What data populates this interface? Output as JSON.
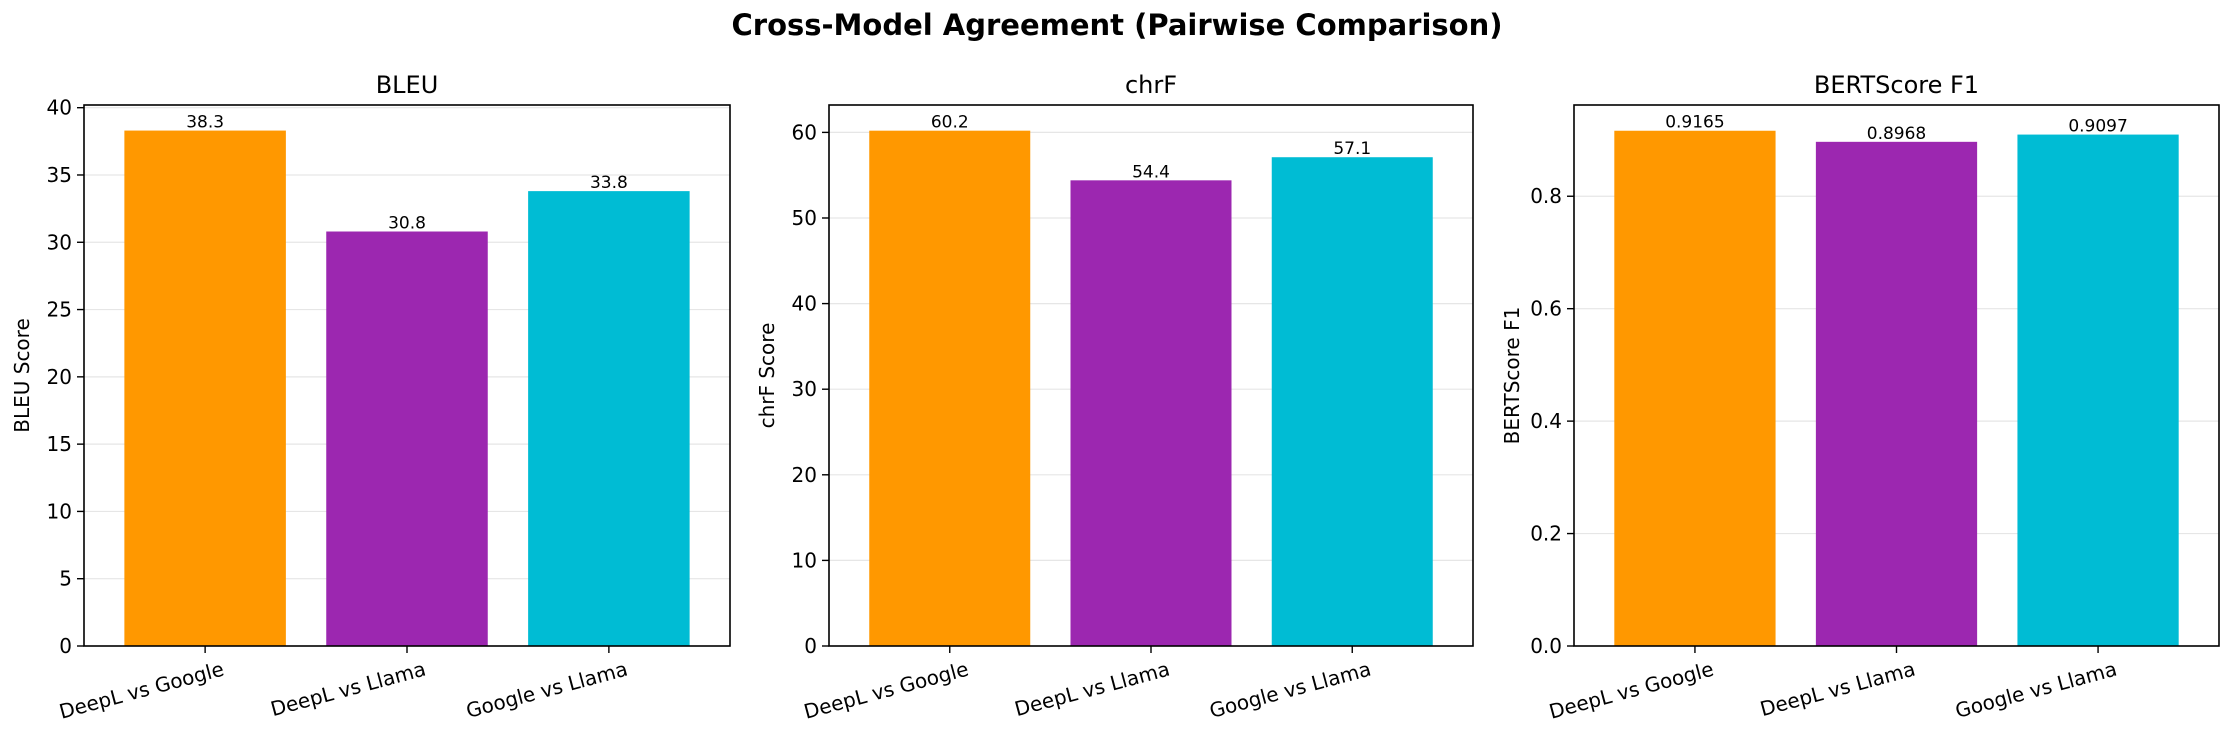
{
  "figure": {
    "title": "Cross-Model Agreement (Pairwise Comparison)"
  },
  "colors": {
    "bars": [
      "#FF9800",
      "#9C27B0",
      "#00BCD4"
    ],
    "grid": "#e6e6e6",
    "axis": "#000000"
  },
  "chart_data": [
    {
      "type": "bar",
      "title": "BLEU",
      "ylabel": "BLEU Score",
      "categories": [
        "DeepL vs Google",
        "DeepL vs Llama",
        "Google vs Llama"
      ],
      "values": [
        38.3,
        30.8,
        33.8
      ],
      "value_labels": [
        "38.3",
        "30.8",
        "33.8"
      ],
      "ylim": [
        0,
        40.2
      ],
      "yticks": [
        0,
        5,
        10,
        15,
        20,
        25,
        30,
        35,
        40
      ],
      "ytick_labels": [
        "0",
        "5",
        "10",
        "15",
        "20",
        "25",
        "30",
        "35",
        "40"
      ],
      "grid": true
    },
    {
      "type": "bar",
      "title": "chrF",
      "ylabel": "chrF Score",
      "categories": [
        "DeepL vs Google",
        "DeepL vs Llama",
        "Google vs Llama"
      ],
      "values": [
        60.2,
        54.4,
        57.1
      ],
      "value_labels": [
        "60.2",
        "54.4",
        "57.1"
      ],
      "ylim": [
        0,
        63.2
      ],
      "yticks": [
        0,
        10,
        20,
        30,
        40,
        50,
        60
      ],
      "ytick_labels": [
        "0",
        "10",
        "20",
        "30",
        "40",
        "50",
        "60"
      ],
      "grid": true
    },
    {
      "type": "bar",
      "title": "BERTScore F1",
      "ylabel": "BERTScore F1",
      "categories": [
        "DeepL vs Google",
        "DeepL vs Llama",
        "Google vs Llama"
      ],
      "values": [
        0.9165,
        0.8968,
        0.9097
      ],
      "value_labels": [
        "0.9165",
        "0.8968",
        "0.9097"
      ],
      "ylim": [
        0,
        0.9623
      ],
      "yticks": [
        0.0,
        0.2,
        0.4,
        0.6,
        0.8
      ],
      "ytick_labels": [
        "0.0",
        "0.2",
        "0.4",
        "0.6",
        "0.8"
      ],
      "grid": true
    }
  ]
}
